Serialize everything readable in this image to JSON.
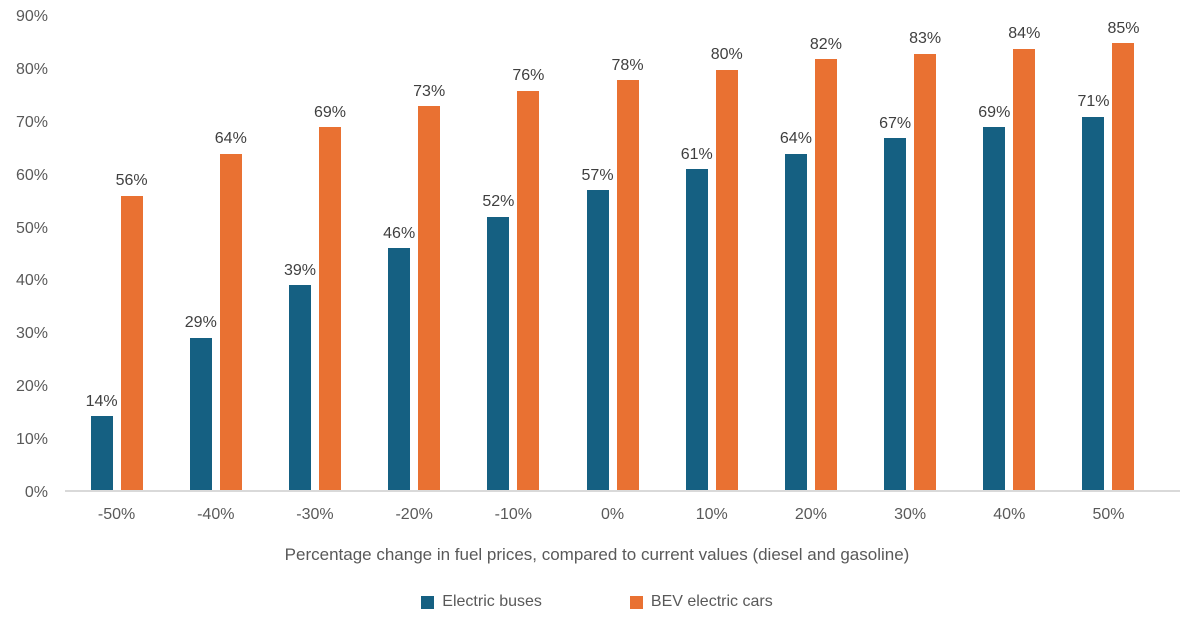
{
  "chart_data": {
    "type": "bar",
    "title": "",
    "categories": [
      "-50%",
      "-40%",
      "-30%",
      "-20%",
      "-10%",
      "0%",
      "10%",
      "20%",
      "30%",
      "40%",
      "50%"
    ],
    "series": [
      {
        "name": "Electric buses",
        "color": "#156082",
        "values": [
          14,
          29,
          39,
          46,
          52,
          57,
          61,
          64,
          67,
          69,
          71
        ],
        "labels": [
          "14%",
          "29%",
          "39%",
          "46%",
          "52%",
          "57%",
          "61%",
          "64%",
          "67%",
          "69%",
          "71%"
        ]
      },
      {
        "name": "BEV electric cars",
        "color": "#E97132",
        "values": [
          56,
          64,
          69,
          73,
          76,
          78,
          80,
          82,
          83,
          84,
          85
        ],
        "labels": [
          "56%",
          "64%",
          "69%",
          "73%",
          "76%",
          "78%",
          "80%",
          "82%",
          "83%",
          "84%",
          "85%"
        ]
      }
    ],
    "xlabel": "Percentage change in fuel prices, compared to current values (diesel and gasoline)",
    "ylabel": "",
    "ylim": [
      0,
      90
    ],
    "yticks": [
      {
        "label": "0%",
        "value": 0
      },
      {
        "label": "10%",
        "value": 10
      },
      {
        "label": "20%",
        "value": 20
      },
      {
        "label": "30%",
        "value": 30
      },
      {
        "label": "40%",
        "value": 40
      },
      {
        "label": "50%",
        "value": 50
      },
      {
        "label": "60%",
        "value": 60
      },
      {
        "label": "70%",
        "value": 70
      },
      {
        "label": "80%",
        "value": 80
      },
      {
        "label": "90%",
        "value": 90
      }
    ],
    "grid": false,
    "legend_position": "bottom",
    "colors": {
      "axis_text": "#595959",
      "data_label_text": "#3F3F3F",
      "baseline": "#D9D9D9",
      "background": "#FFFFFF"
    }
  }
}
